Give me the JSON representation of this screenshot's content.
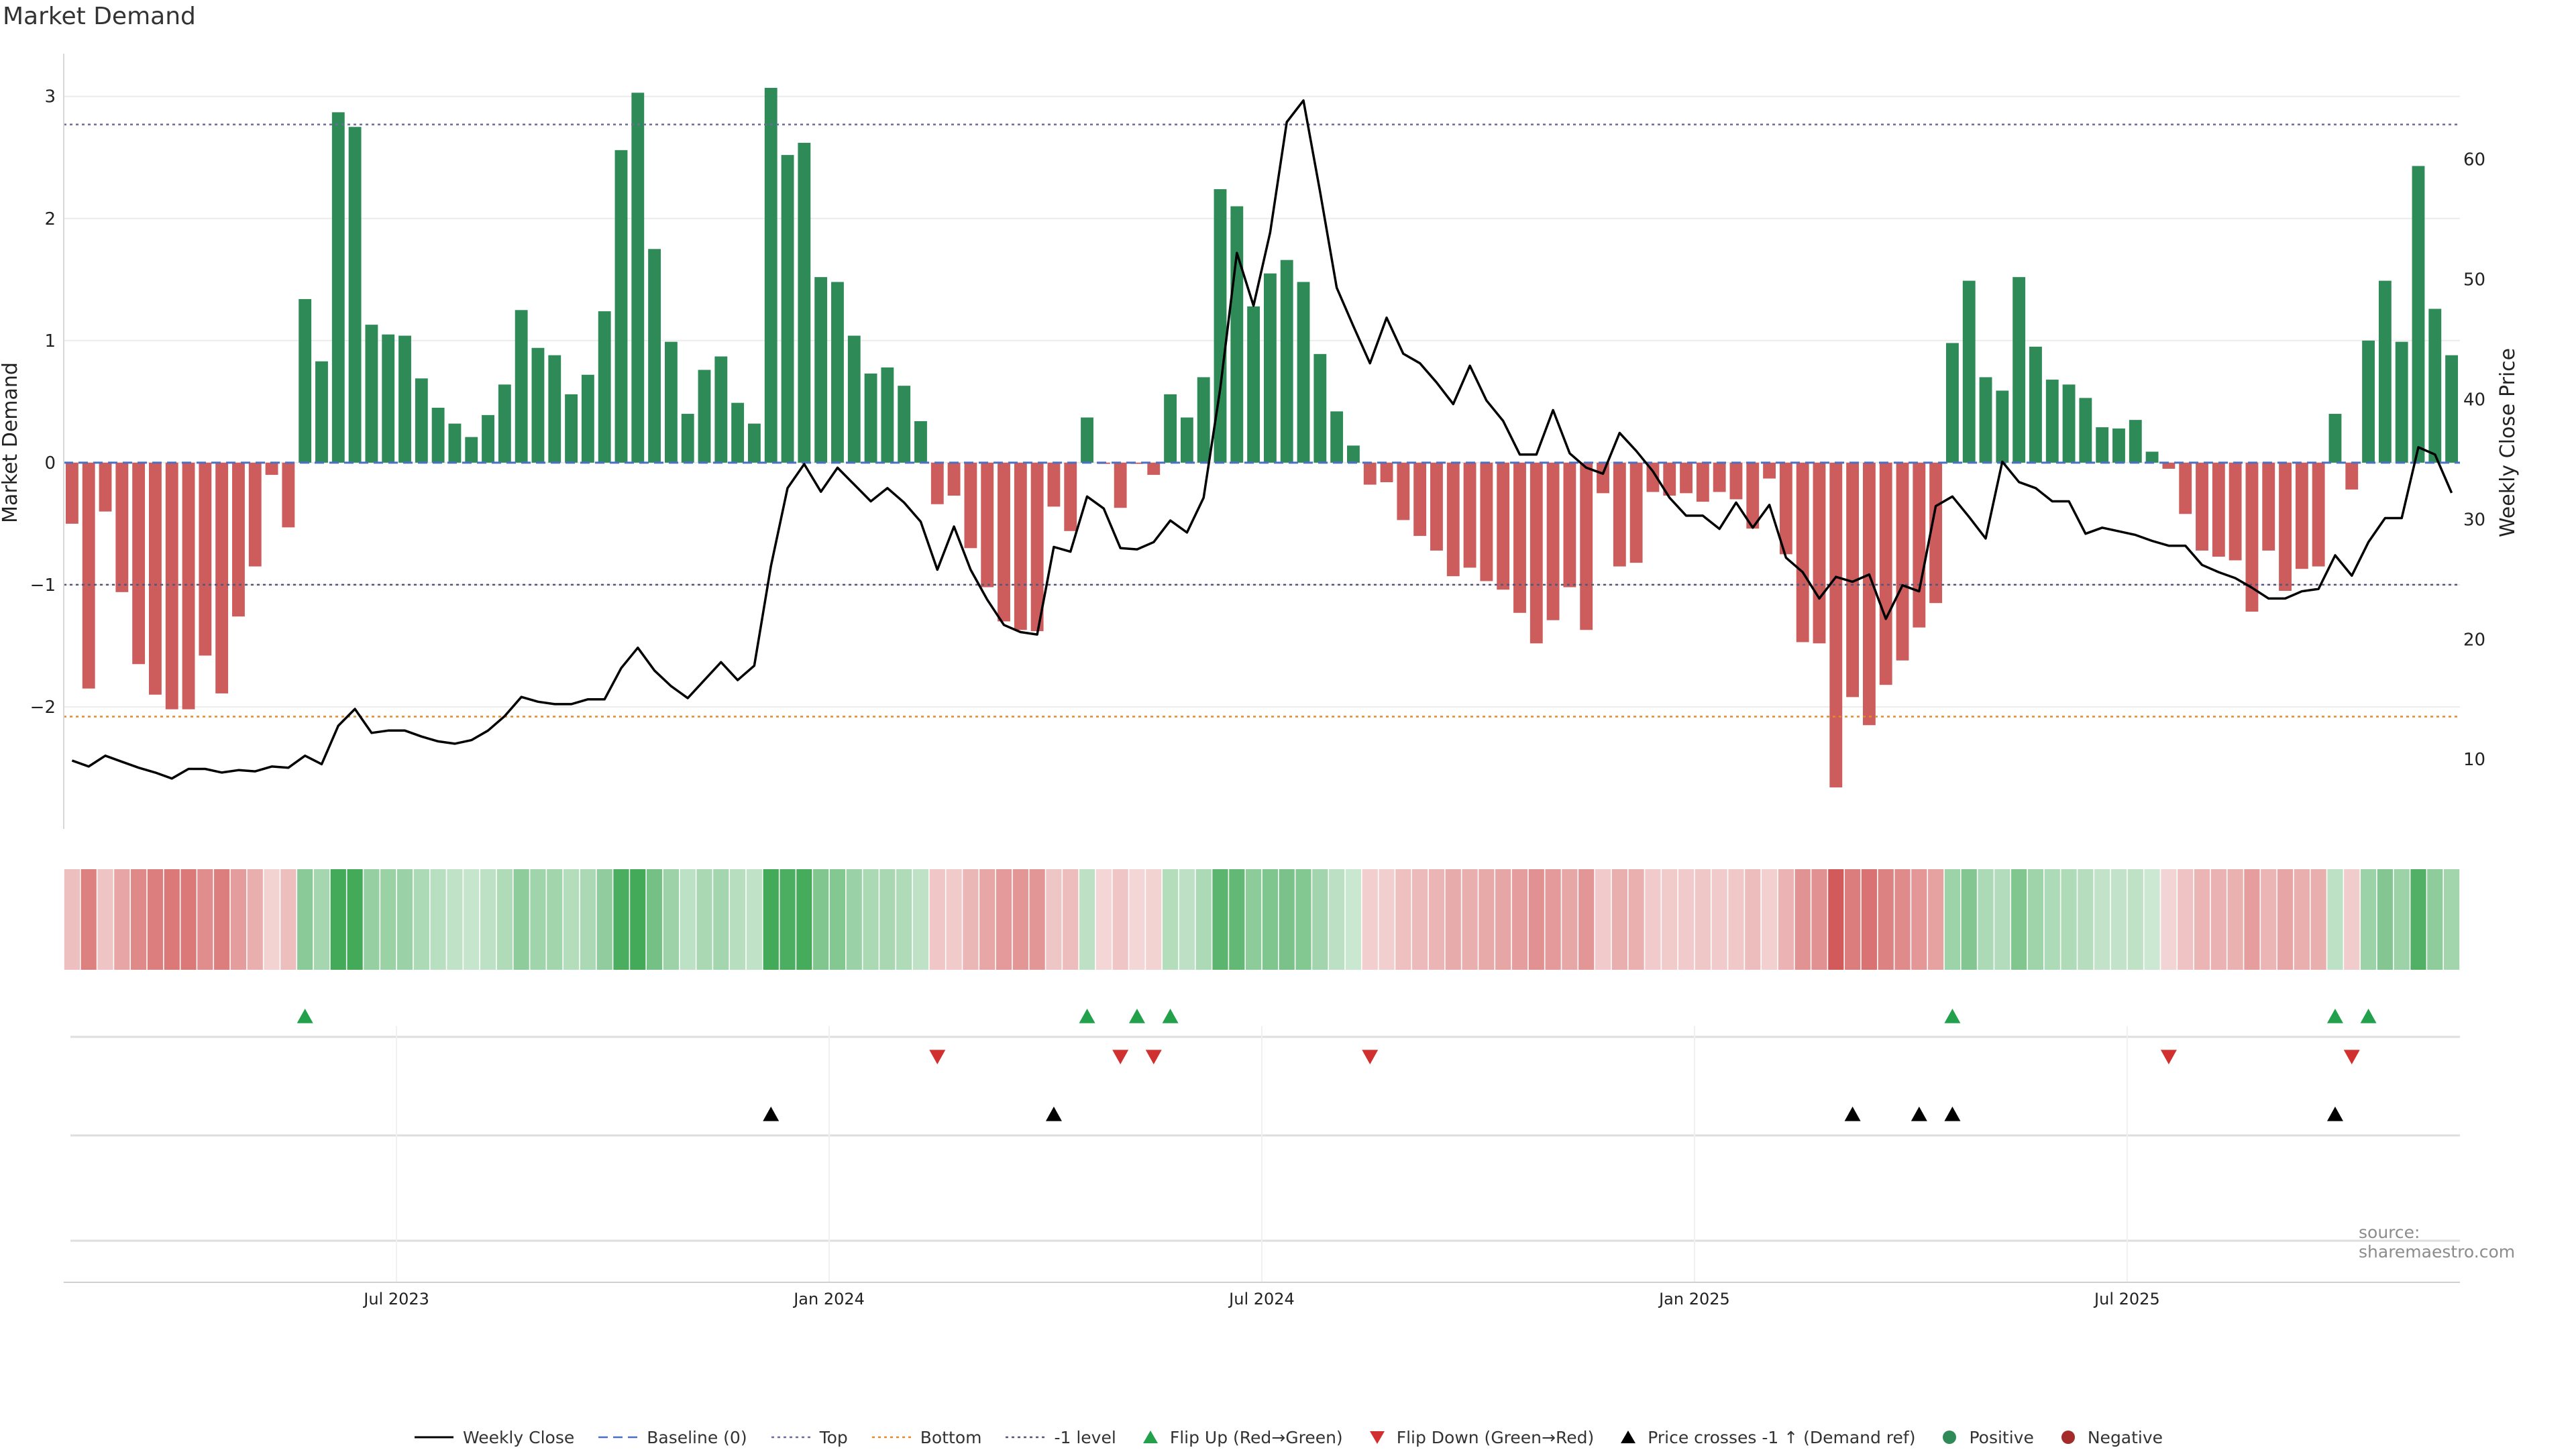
{
  "title": "Market Demand",
  "source": "source: sharemaestro.com",
  "colors": {
    "positive": "#2e8b57",
    "negative": "#cd5c5c",
    "price": "#000000",
    "baseline": "#4a6fc4",
    "top": "#6b6b9e",
    "bottom": "#e38a2e",
    "minus_one": "#555577",
    "flip_up": "#22a04b",
    "flip_down": "#d03030",
    "cross": "#000000"
  },
  "legend": [
    {
      "key": "price",
      "label": "Weekly Close",
      "kind": "line",
      "color": "#000000",
      "dash": ""
    },
    {
      "key": "baseline",
      "label": "Baseline (0)",
      "kind": "line",
      "color": "#4a6fc4",
      "dash": "14,8"
    },
    {
      "key": "top",
      "label": "Top",
      "kind": "line",
      "color": "#6b6b9e",
      "dash": "4,5"
    },
    {
      "key": "bottom",
      "label": "Bottom",
      "kind": "line",
      "color": "#e38a2e",
      "dash": "4,5"
    },
    {
      "key": "minus_one",
      "label": "-1 level",
      "kind": "line",
      "color": "#555577",
      "dash": "4,5"
    },
    {
      "key": "flip_up",
      "label": "Flip Up (Red→Green)",
      "kind": "tri-up",
      "color": "#22a04b"
    },
    {
      "key": "flip_down",
      "label": "Flip Down (Green→Red)",
      "kind": "tri-down",
      "color": "#d03030"
    },
    {
      "key": "cross",
      "label": "Price crosses -1 ↑ (Demand ref)",
      "kind": "tri-up",
      "color": "#000000"
    },
    {
      "key": "positive",
      "label": "Positive",
      "kind": "dot",
      "color": "#2e8b57"
    },
    {
      "key": "negative",
      "label": "Negative",
      "kind": "dot",
      "color": "#a52a2a"
    }
  ],
  "chart_data": {
    "type": "bar",
    "title": "Market Demand",
    "ylabel": "Market Demand",
    "y2label": "Weekly Close Price",
    "ylim": [
      -3.0,
      3.35
    ],
    "yticks": [
      3,
      2,
      1,
      0,
      -1,
      -2
    ],
    "y2lim": [
      4.2,
      68.8
    ],
    "y2ticks": [
      60,
      50,
      40,
      30,
      20,
      10
    ],
    "x_week_index_start": 0,
    "xticks": [
      {
        "label": "Jul 2023",
        "week": 20
      },
      {
        "label": "Jan 2024",
        "week": 46
      },
      {
        "label": "Jul 2024",
        "week": 72
      },
      {
        "label": "Jan 2025",
        "week": 98
      },
      {
        "label": "Jul 2025",
        "week": 124
      }
    ],
    "reference_lines": {
      "top": 2.77,
      "bottom": -2.08,
      "minus_one": -1.0,
      "baseline": 0
    },
    "demand": [
      -0.5,
      -1.85,
      -0.4,
      -1.06,
      -1.65,
      -1.9,
      -2.02,
      -2.02,
      -1.58,
      -1.89,
      -1.26,
      -0.85,
      -0.1,
      -0.53,
      1.34,
      0.83,
      2.87,
      2.75,
      1.13,
      1.05,
      1.04,
      0.69,
      0.45,
      0.32,
      0.21,
      0.39,
      0.64,
      1.25,
      0.94,
      0.88,
      0.56,
      0.72,
      1.24,
      2.56,
      3.03,
      1.75,
      0.99,
      0.4,
      0.76,
      0.87,
      0.49,
      0.32,
      3.07,
      2.52,
      2.62,
      1.52,
      1.48,
      1.04,
      0.73,
      0.78,
      0.63,
      0.34,
      -0.34,
      -0.27,
      -0.7,
      -1.02,
      -1.3,
      -1.37,
      -1.38,
      -0.36,
      -0.56,
      0.37,
      -0.01,
      -0.37,
      -0.01,
      -0.1,
      0.56,
      0.37,
      0.7,
      2.24,
      2.1,
      1.28,
      1.55,
      1.66,
      1.48,
      0.89,
      0.42,
      0.14,
      -0.18,
      -0.16,
      -0.47,
      -0.6,
      -0.72,
      -0.93,
      -0.86,
      -0.97,
      -1.04,
      -1.23,
      -1.48,
      -1.29,
      -1.02,
      -1.37,
      -0.25,
      -0.85,
      -0.82,
      -0.24,
      -0.27,
      -0.25,
      -0.32,
      -0.24,
      -0.3,
      -0.54,
      -0.13,
      -0.75,
      -1.47,
      -1.48,
      -2.66,
      -1.92,
      -2.15,
      -1.82,
      -1.62,
      -1.35,
      -1.15,
      0.98,
      1.49,
      0.7,
      0.59,
      1.52,
      0.95,
      0.68,
      0.64,
      0.53,
      0.29,
      0.28,
      0.35,
      0.09,
      -0.05,
      -0.42,
      -0.72,
      -0.77,
      -0.8,
      -1.22,
      -0.72,
      -1.05,
      -0.87,
      -0.85,
      0.4,
      -0.22,
      1.0,
      1.49,
      0.99,
      2.43,
      1.26,
      0.88
    ],
    "price": [
      9.9,
      9.4,
      10.3,
      9.8,
      9.3,
      8.9,
      8.4,
      9.2,
      9.2,
      8.9,
      9.1,
      9.0,
      9.4,
      9.3,
      10.3,
      9.6,
      12.8,
      14.2,
      12.2,
      12.4,
      12.4,
      11.9,
      11.5,
      11.3,
      11.6,
      12.4,
      13.6,
      15.2,
      14.8,
      14.6,
      14.6,
      15.0,
      15.0,
      17.6,
      19.3,
      17.4,
      16.1,
      15.1,
      16.6,
      18.1,
      16.6,
      17.8,
      26.1,
      32.6,
      34.6,
      32.3,
      34.3,
      32.9,
      31.5,
      32.6,
      31.4,
      29.8,
      25.8,
      29.4,
      25.8,
      23.3,
      21.2,
      20.6,
      20.4,
      27.7,
      27.3,
      31.9,
      30.9,
      27.6,
      27.5,
      28.1,
      29.9,
      28.9,
      31.8,
      40.9,
      52.2,
      47.8,
      53.9,
      63.1,
      64.9,
      57.3,
      49.3,
      46.1,
      43.0,
      46.8,
      43.8,
      43.0,
      41.4,
      39.6,
      42.8,
      39.9,
      38.2,
      35.4,
      35.4,
      39.1,
      35.5,
      34.3,
      33.8,
      37.2,
      35.7,
      34.0,
      31.8,
      30.3,
      30.3,
      29.2,
      31.4,
      29.3,
      31.2,
      26.8,
      25.6,
      23.4,
      25.2,
      24.8,
      25.4,
      21.7,
      24.5,
      24.0,
      31.1,
      31.9,
      30.2,
      28.4,
      34.8,
      33.1,
      32.6,
      31.5,
      31.5,
      28.8,
      29.3,
      29.0,
      28.7,
      28.2,
      27.8,
      27.8,
      26.2,
      25.6,
      25.1,
      24.3,
      23.4,
      23.4,
      24.0,
      24.2,
      27.0,
      25.3,
      28.1,
      30.1,
      30.1,
      36.0,
      35.4,
      32.2
    ],
    "flip_up_weeks": [
      14,
      61,
      64,
      66,
      113,
      136,
      138
    ],
    "flip_down_weeks": [
      52,
      63,
      65,
      78,
      126,
      137
    ],
    "cross_weeks": [
      42,
      59,
      107,
      111,
      113,
      136
    ]
  }
}
